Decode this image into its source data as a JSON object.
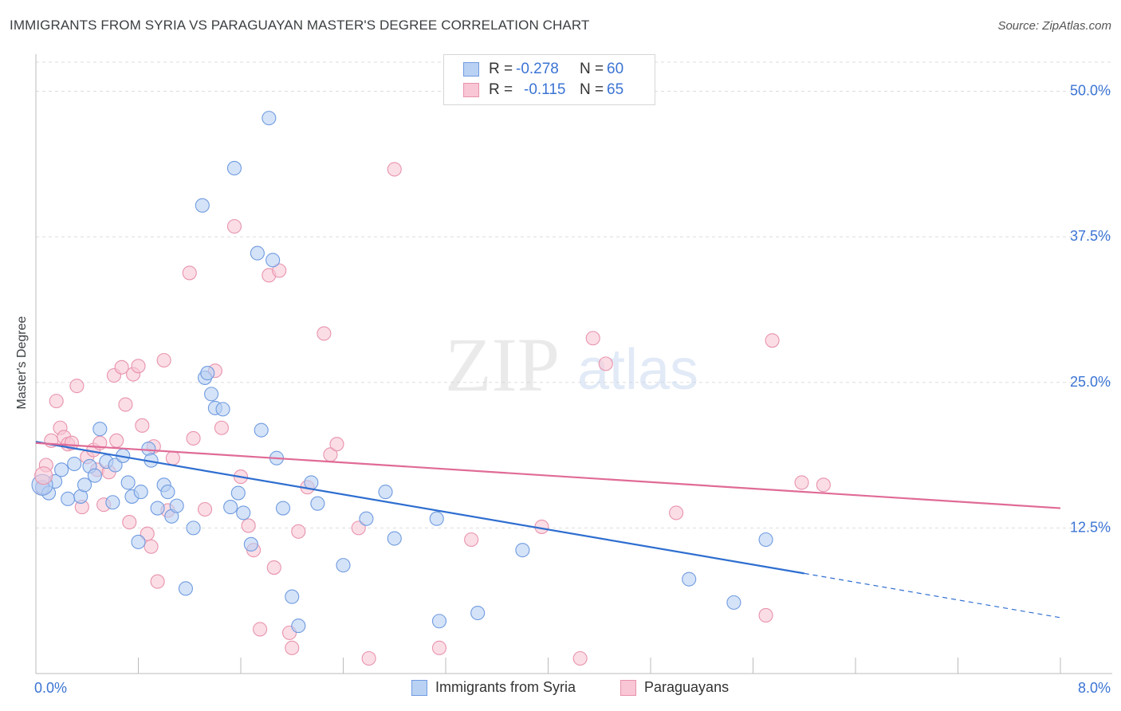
{
  "title": "IMMIGRANTS FROM SYRIA VS PARAGUAYAN MASTER'S DEGREE CORRELATION CHART",
  "source": "Source: ZipAtlas.com",
  "watermark": {
    "zip": "ZIP",
    "atlas": "atlas"
  },
  "stats": {
    "row1": {
      "r_label": "R =",
      "r_value": "-0.278",
      "n_label": "N =",
      "n_value": "60"
    },
    "row2": {
      "r_label": "R =",
      "r_value": "-0.115",
      "n_label": "N =",
      "n_value": "65"
    }
  },
  "legend": {
    "series1": "Immigrants from Syria",
    "series2": "Paraguayans"
  },
  "colors": {
    "blue_fill": "#b9d1f3",
    "blue_stroke": "#6f9be0",
    "blue_line": "#2e6ed0",
    "pink_fill": "#f8c6d4",
    "pink_stroke": "#e893ad",
    "pink_line": "#e06b96",
    "tick_text": "#3b74d4",
    "grid": "#dddddd"
  },
  "chart_data": {
    "type": "scatter",
    "title": "IMMIGRANTS FROM SYRIA VS PARAGUAYAN MASTER'S DEGREE CORRELATION CHART",
    "xlabel": "",
    "ylabel": "Master's Degree",
    "xlim": [
      0,
      8
    ],
    "ylim": [
      0,
      52.5
    ],
    "x_tick_labels": [
      "0.0%",
      "8.0%"
    ],
    "y_ticks": [
      12.5,
      25.0,
      37.5,
      50.0
    ],
    "y_tick_labels": [
      "12.5%",
      "25.0%",
      "37.5%",
      "50.0%"
    ],
    "grid": true,
    "series": [
      {
        "name": "Immigrants from Syria",
        "color": "#6f9be0",
        "points": [
          [
            0.05,
            16.0
          ],
          [
            0.1,
            15.5
          ],
          [
            0.15,
            16.5
          ],
          [
            0.2,
            17.5
          ],
          [
            0.25,
            15.0
          ],
          [
            0.3,
            18.0
          ],
          [
            0.35,
            15.2
          ],
          [
            0.38,
            16.2
          ],
          [
            0.42,
            17.8
          ],
          [
            0.46,
            17.0
          ],
          [
            0.5,
            21.0
          ],
          [
            0.55,
            18.2
          ],
          [
            0.6,
            14.7
          ],
          [
            0.62,
            17.9
          ],
          [
            0.68,
            18.7
          ],
          [
            0.72,
            16.4
          ],
          [
            0.75,
            15.2
          ],
          [
            0.8,
            11.3
          ],
          [
            0.82,
            15.6
          ],
          [
            0.88,
            19.3
          ],
          [
            0.9,
            18.3
          ],
          [
            0.95,
            14.2
          ],
          [
            1.0,
            16.2
          ],
          [
            1.03,
            15.6
          ],
          [
            1.06,
            13.5
          ],
          [
            1.1,
            14.4
          ],
          [
            1.17,
            7.3
          ],
          [
            1.23,
            12.5
          ],
          [
            1.3,
            40.2
          ],
          [
            1.32,
            25.4
          ],
          [
            1.34,
            25.8
          ],
          [
            1.37,
            24.0
          ],
          [
            1.4,
            22.8
          ],
          [
            1.46,
            22.7
          ],
          [
            1.52,
            14.3
          ],
          [
            1.55,
            43.4
          ],
          [
            1.58,
            15.5
          ],
          [
            1.62,
            13.8
          ],
          [
            1.68,
            11.1
          ],
          [
            1.73,
            36.1
          ],
          [
            1.76,
            20.9
          ],
          [
            1.82,
            47.7
          ],
          [
            1.85,
            35.5
          ],
          [
            1.88,
            18.5
          ],
          [
            1.93,
            14.2
          ],
          [
            2.0,
            6.6
          ],
          [
            2.05,
            4.1
          ],
          [
            2.15,
            16.4
          ],
          [
            2.2,
            14.6
          ],
          [
            2.4,
            9.3
          ],
          [
            2.58,
            13.3
          ],
          [
            2.73,
            15.6
          ],
          [
            2.8,
            11.6
          ],
          [
            3.13,
            13.3
          ],
          [
            3.15,
            4.5
          ],
          [
            3.45,
            5.2
          ],
          [
            3.8,
            10.6
          ],
          [
            5.1,
            8.1
          ],
          [
            5.45,
            6.1
          ],
          [
            5.7,
            11.5
          ]
        ],
        "trend": {
          "x": [
            0,
            6.0
          ],
          "y": [
            19.9,
            8.6
          ],
          "dashed_to": [
            8.0,
            4.8
          ]
        }
      },
      {
        "name": "Paraguayans",
        "color": "#e893ad",
        "points": [
          [
            0.05,
            15.9
          ],
          [
            0.08,
            17.9
          ],
          [
            0.12,
            20.0
          ],
          [
            0.16,
            23.4
          ],
          [
            0.19,
            21.1
          ],
          [
            0.22,
            20.3
          ],
          [
            0.25,
            19.7
          ],
          [
            0.28,
            19.8
          ],
          [
            0.32,
            24.7
          ],
          [
            0.36,
            14.3
          ],
          [
            0.4,
            18.6
          ],
          [
            0.45,
            19.2
          ],
          [
            0.48,
            17.5
          ],
          [
            0.5,
            19.8
          ],
          [
            0.53,
            14.5
          ],
          [
            0.57,
            17.3
          ],
          [
            0.61,
            25.6
          ],
          [
            0.63,
            20.0
          ],
          [
            0.67,
            26.3
          ],
          [
            0.7,
            23.1
          ],
          [
            0.73,
            13.0
          ],
          [
            0.76,
            25.7
          ],
          [
            0.8,
            26.4
          ],
          [
            0.83,
            21.3
          ],
          [
            0.87,
            12.0
          ],
          [
            0.9,
            10.9
          ],
          [
            0.92,
            19.5
          ],
          [
            0.95,
            7.9
          ],
          [
            1.0,
            26.9
          ],
          [
            1.03,
            14.0
          ],
          [
            1.07,
            18.5
          ],
          [
            1.2,
            34.4
          ],
          [
            1.23,
            20.2
          ],
          [
            1.32,
            14.1
          ],
          [
            1.4,
            26.0
          ],
          [
            1.45,
            21.1
          ],
          [
            1.55,
            38.4
          ],
          [
            1.6,
            16.9
          ],
          [
            1.66,
            12.7
          ],
          [
            1.7,
            10.6
          ],
          [
            1.75,
            3.8
          ],
          [
            1.82,
            34.2
          ],
          [
            1.86,
            9.1
          ],
          [
            1.9,
            34.6
          ],
          [
            1.98,
            3.5
          ],
          [
            2.0,
            2.2
          ],
          [
            2.05,
            12.2
          ],
          [
            2.12,
            16.0
          ],
          [
            2.25,
            29.2
          ],
          [
            2.3,
            18.8
          ],
          [
            2.35,
            19.7
          ],
          [
            2.52,
            12.5
          ],
          [
            2.6,
            1.3
          ],
          [
            2.8,
            43.3
          ],
          [
            3.15,
            2.2
          ],
          [
            3.4,
            11.5
          ],
          [
            3.95,
            12.6
          ],
          [
            4.25,
            1.3
          ],
          [
            4.35,
            28.8
          ],
          [
            4.45,
            26.6
          ],
          [
            5.0,
            13.8
          ],
          [
            5.7,
            5.0
          ],
          [
            5.75,
            28.6
          ],
          [
            5.98,
            16.4
          ],
          [
            6.15,
            16.2
          ]
        ],
        "trend": {
          "x": [
            0,
            8.0
          ],
          "y": [
            19.8,
            14.2
          ]
        }
      }
    ]
  }
}
